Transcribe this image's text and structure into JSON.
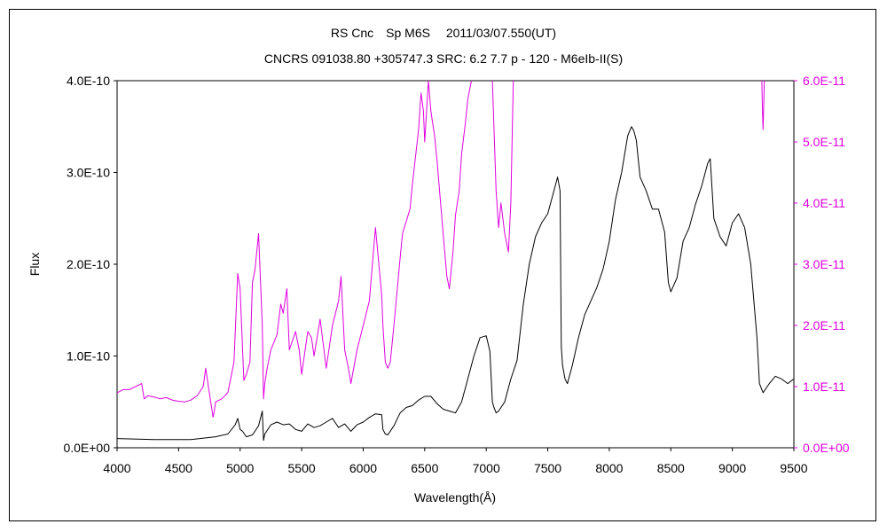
{
  "chart_data": {
    "type": "line",
    "title": "RS Cnc　Sp M6S　 2011/03/07.550(UT)",
    "subtitle": "CNCRS 091038.80 +305747.3 SRC: 6.2 7.7 p - 120 - M6eIb-II(S)",
    "xlabel": "Wavelength(Å)",
    "ylabel": "Flux",
    "y2label": "",
    "xlim": [
      4000,
      9500
    ],
    "ylim": [
      0,
      4e-10
    ],
    "y2lim": [
      0,
      6e-11
    ],
    "grid": false,
    "legend": "none",
    "xticks": [
      "4000",
      "4500",
      "5000",
      "5500",
      "6000",
      "6500",
      "7000",
      "7500",
      "8000",
      "8500",
      "9000",
      "9500"
    ],
    "yticks": [
      "0.0E+00",
      "1.0E-10",
      "2.0E-10",
      "3.0E-10",
      "4.0E-10"
    ],
    "y2ticks": [
      "0.0E+00",
      "1.0E-11",
      "2.0E-11",
      "3.0E-11",
      "4.0E-11",
      "5.0E-11",
      "6.0E-11"
    ],
    "series": [
      {
        "axis": "left",
        "color": "#000000",
        "x": [
          4000,
          4300,
          4600,
          4800,
          4900,
          4960,
          4980,
          5000,
          5020,
          5050,
          5100,
          5150,
          5180,
          5190,
          5200,
          5250,
          5300,
          5350,
          5400,
          5450,
          5500,
          5550,
          5600,
          5650,
          5700,
          5750,
          5800,
          5850,
          5900,
          5950,
          6000,
          6050,
          6100,
          6150,
          6160,
          6180,
          6200,
          6250,
          6300,
          6350,
          6400,
          6450,
          6500,
          6550,
          6600,
          6650,
          6700,
          6750,
          6800,
          6850,
          6900,
          6950,
          7000,
          7030,
          7050,
          7060,
          7080,
          7100,
          7150,
          7200,
          7250,
          7300,
          7350,
          7400,
          7450,
          7500,
          7550,
          7580,
          7600,
          7610,
          7620,
          7640,
          7660,
          7700,
          7750,
          7800,
          7850,
          7900,
          7950,
          8000,
          8050,
          8100,
          8150,
          8180,
          8200,
          8220,
          8250,
          8300,
          8350,
          8400,
          8450,
          8480,
          8500,
          8550,
          8600,
          8650,
          8700,
          8750,
          8800,
          8820,
          8850,
          8900,
          8950,
          9000,
          9050,
          9100,
          9150,
          9200,
          9220,
          9250,
          9300,
          9350,
          9400,
          9450,
          9500
        ],
        "y": [
          1e-11,
          9e-12,
          9e-12,
          1.2e-11,
          1.5e-11,
          2.5e-11,
          3.2e-11,
          2e-11,
          1.8e-11,
          1.2e-11,
          1.4e-11,
          2.4e-11,
          4e-11,
          8e-12,
          1.5e-11,
          2.5e-11,
          2.8e-11,
          2.5e-11,
          2.6e-11,
          2e-11,
          1.8e-11,
          2.6e-11,
          2.2e-11,
          2.4e-11,
          2.8e-11,
          3.2e-11,
          2.2e-11,
          2.6e-11,
          1.8e-11,
          2.5e-11,
          2.8e-11,
          3.3e-11,
          3.7e-11,
          3.6e-11,
          2e-11,
          1.5e-11,
          1.4e-11,
          2.4e-11,
          3.8e-11,
          4.4e-11,
          4.6e-11,
          5.2e-11,
          5.6e-11,
          5.6e-11,
          4.8e-11,
          4.2e-11,
          4e-11,
          3.8e-11,
          5e-11,
          7.5e-11,
          1e-10,
          1.2e-10,
          1.22e-10,
          1.05e-10,
          5e-11,
          4.5e-11,
          3.8e-11,
          4e-11,
          5e-11,
          7.5e-11,
          9.5e-11,
          1.55e-10,
          2e-10,
          2.3e-10,
          2.45e-10,
          2.55e-10,
          2.8e-10,
          2.95e-10,
          2.8e-10,
          1.1e-10,
          9e-11,
          7.5e-11,
          7e-11,
          9e-11,
          1.2e-10,
          1.45e-10,
          1.6e-10,
          1.75e-10,
          1.95e-10,
          2.25e-10,
          2.7e-10,
          3e-10,
          3.4e-10,
          3.5e-10,
          3.45e-10,
          3.35e-10,
          2.95e-10,
          2.8e-10,
          2.6e-10,
          2.6e-10,
          2.35e-10,
          1.8e-10,
          1.7e-10,
          1.85e-10,
          2.25e-10,
          2.4e-10,
          2.65e-10,
          2.85e-10,
          3.1e-10,
          3.15e-10,
          2.5e-10,
          2.3e-10,
          2.2e-10,
          2.45e-10,
          2.55e-10,
          2.4e-10,
          2e-10,
          1.2e-10,
          7e-11,
          6e-11,
          7e-11,
          7.8e-11,
          7.5e-11,
          7e-11,
          7.5e-11
        ]
      },
      {
        "axis": "right",
        "color": "#e000e0",
        "x": [
          4000,
          4050,
          4100,
          4150,
          4200,
          4220,
          4250,
          4300,
          4350,
          4400,
          4450,
          4500,
          4550,
          4600,
          4650,
          4700,
          4720,
          4750,
          4780,
          4790,
          4800,
          4850,
          4900,
          4950,
          4980,
          5000,
          5030,
          5050,
          5080,
          5100,
          5120,
          5150,
          5180,
          5190,
          5200,
          5220,
          5250,
          5300,
          5330,
          5350,
          5380,
          5400,
          5450,
          5480,
          5500,
          5550,
          5580,
          5600,
          5650,
          5700,
          5750,
          5800,
          5820,
          5850,
          5880,
          5900,
          5950,
          6000,
          6050,
          6100,
          6150,
          6160,
          6180,
          6200,
          6220,
          6250,
          6300,
          6320,
          6350,
          6380,
          6400,
          6450,
          6470,
          6490,
          6500,
          6530,
          6550,
          6580,
          6600,
          6650,
          6680,
          6700,
          6730,
          6750,
          6780,
          6800,
          6830,
          6850,
          6870,
          6880,
          6890,
          7000,
          7050,
          7080,
          7100,
          7120,
          7150,
          7180,
          7200,
          7220,
          7250
        ],
        "y": [
          9e-12,
          9.5e-12,
          9.5e-12,
          1e-11,
          1.05e-11,
          8e-12,
          8.5e-12,
          8.3e-12,
          8e-12,
          8.2e-12,
          7.8e-12,
          7.6e-12,
          7.5e-12,
          7.8e-12,
          8.5e-12,
          1e-11,
          1.3e-11,
          9e-12,
          5e-12,
          6e-12,
          7.5e-12,
          8e-12,
          9e-12,
          1.4e-11,
          2.85e-11,
          2.6e-11,
          1.1e-11,
          1.2e-11,
          1.4e-11,
          2.7e-11,
          2.9e-11,
          3.5e-11,
          2e-11,
          8e-12,
          1.05e-11,
          1.3e-11,
          1.6e-11,
          1.85e-11,
          2.35e-11,
          2.2e-11,
          2.6e-11,
          1.6e-11,
          1.9e-11,
          1.6e-11,
          1.2e-11,
          1.9e-11,
          1.8e-11,
          1.5e-11,
          2.1e-11,
          1.3e-11,
          2e-11,
          2.4e-11,
          2.8e-11,
          1.6e-11,
          1.3e-11,
          1.05e-11,
          1.6e-11,
          2e-11,
          2.4e-11,
          3.6e-11,
          2.5e-11,
          2e-11,
          1.4e-11,
          1.3e-11,
          1.4e-11,
          2e-11,
          3.1e-11,
          3.5e-11,
          3.7e-11,
          3.9e-11,
          4.3e-11,
          5.2e-11,
          5.8e-11,
          5.5e-11,
          5e-11,
          6e-11,
          5.5e-11,
          5.1e-11,
          4.7e-11,
          3.5e-11,
          2.8e-11,
          2.6e-11,
          3.2e-11,
          3.8e-11,
          4.2e-11,
          4.8e-11,
          5.3e-11,
          5.7e-11,
          5.9e-11,
          6e-11,
          6.5e-11,
          6.5e-11,
          6e-11,
          4.2e-11,
          3.6e-11,
          4e-11,
          3.5e-11,
          3.2e-11,
          4e-11,
          6e-11,
          6.5e-11
        ]
      },
      {
        "axis": "right",
        "color": "#e000e0",
        "x": [
          9235,
          9240,
          9245,
          9250,
          9255,
          9260,
          9265
        ],
        "y": [
          6.5e-11,
          6e-11,
          5.5e-11,
          5.2e-11,
          5.6e-11,
          6e-11,
          6.5e-11
        ]
      }
    ]
  }
}
